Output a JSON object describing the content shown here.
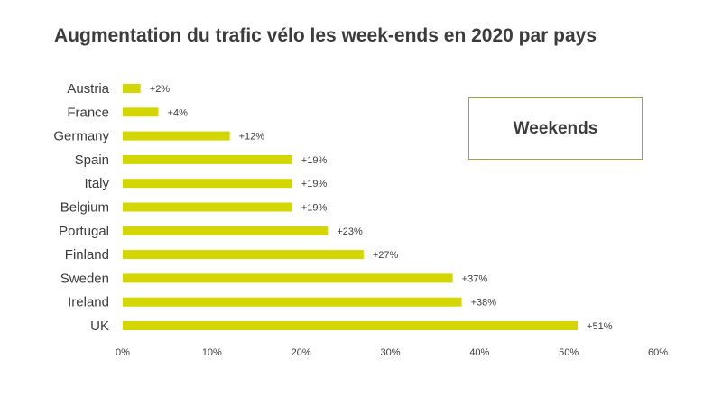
{
  "chart_data": {
    "type": "bar",
    "orientation": "horizontal",
    "title": "Augmentation du trafic vélo les week-ends en 2020 par pays",
    "legend": "Weekends",
    "legend_placement": "top-right",
    "categories": [
      "Austria",
      "France",
      "Germany",
      "Spain",
      "Italy",
      "Belgium",
      "Portugal",
      "Finland",
      "Sweden",
      "Ireland",
      "UK"
    ],
    "values": [
      2,
      4,
      12,
      19,
      19,
      19,
      23,
      27,
      37,
      38,
      51
    ],
    "data_labels": [
      "+2%",
      "+4%",
      "+12%",
      "+19%",
      "+19%",
      "+19%",
      "+23%",
      "+27%",
      "+37%",
      "+38%",
      "+51%"
    ],
    "xlim": [
      0,
      60
    ],
    "x_ticks": [
      0,
      10,
      20,
      30,
      40,
      50,
      60
    ],
    "x_tick_labels": [
      "0%",
      "10%",
      "20%",
      "30%",
      "40%",
      "50%",
      "60%"
    ],
    "grid": false,
    "bar_color": "#d4d600"
  }
}
